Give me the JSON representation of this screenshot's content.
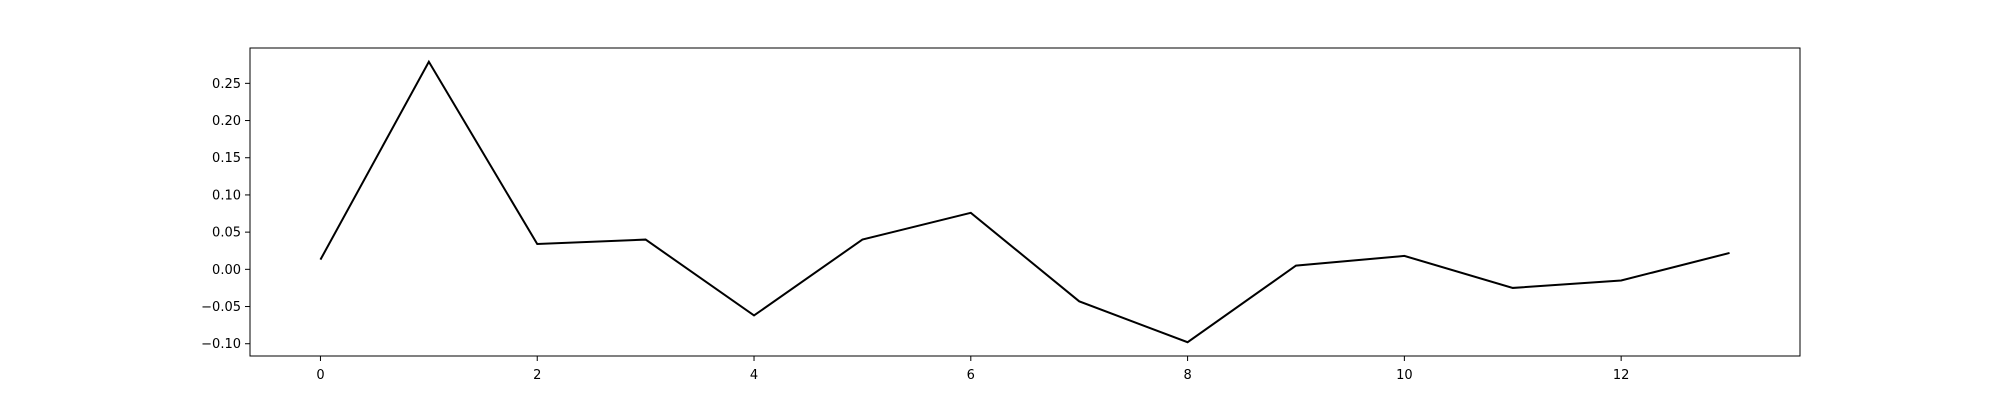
{
  "chart_data": {
    "type": "line",
    "title": "",
    "xlabel": "",
    "ylabel": "",
    "x": [
      0,
      1,
      2,
      3,
      4,
      5,
      6,
      7,
      8,
      9,
      10,
      11,
      12,
      13
    ],
    "series": [
      {
        "values": [
          0.013,
          0.279,
          0.034,
          0.04,
          -0.062,
          0.04,
          0.076,
          -0.043,
          -0.098,
          0.005,
          0.018,
          -0.025,
          -0.015,
          0.022
        ],
        "color": "#000000"
      }
    ],
    "xlim": [
      -0.65,
      13.65
    ],
    "ylim": [
      -0.1165,
      0.2975
    ],
    "xticks": [
      0,
      2,
      4,
      6,
      8,
      10,
      12
    ],
    "xtick_labels": [
      "0",
      "2",
      "4",
      "6",
      "8",
      "10",
      "12"
    ],
    "yticks": [
      -0.1,
      -0.05,
      0.0,
      0.05,
      0.1,
      0.15,
      0.2,
      0.25
    ],
    "ytick_labels": [
      "−0.10",
      "−0.05",
      "0.00",
      "0.05",
      "0.10",
      "0.15",
      "0.20",
      "0.25"
    ],
    "grid": false,
    "legend": false
  }
}
